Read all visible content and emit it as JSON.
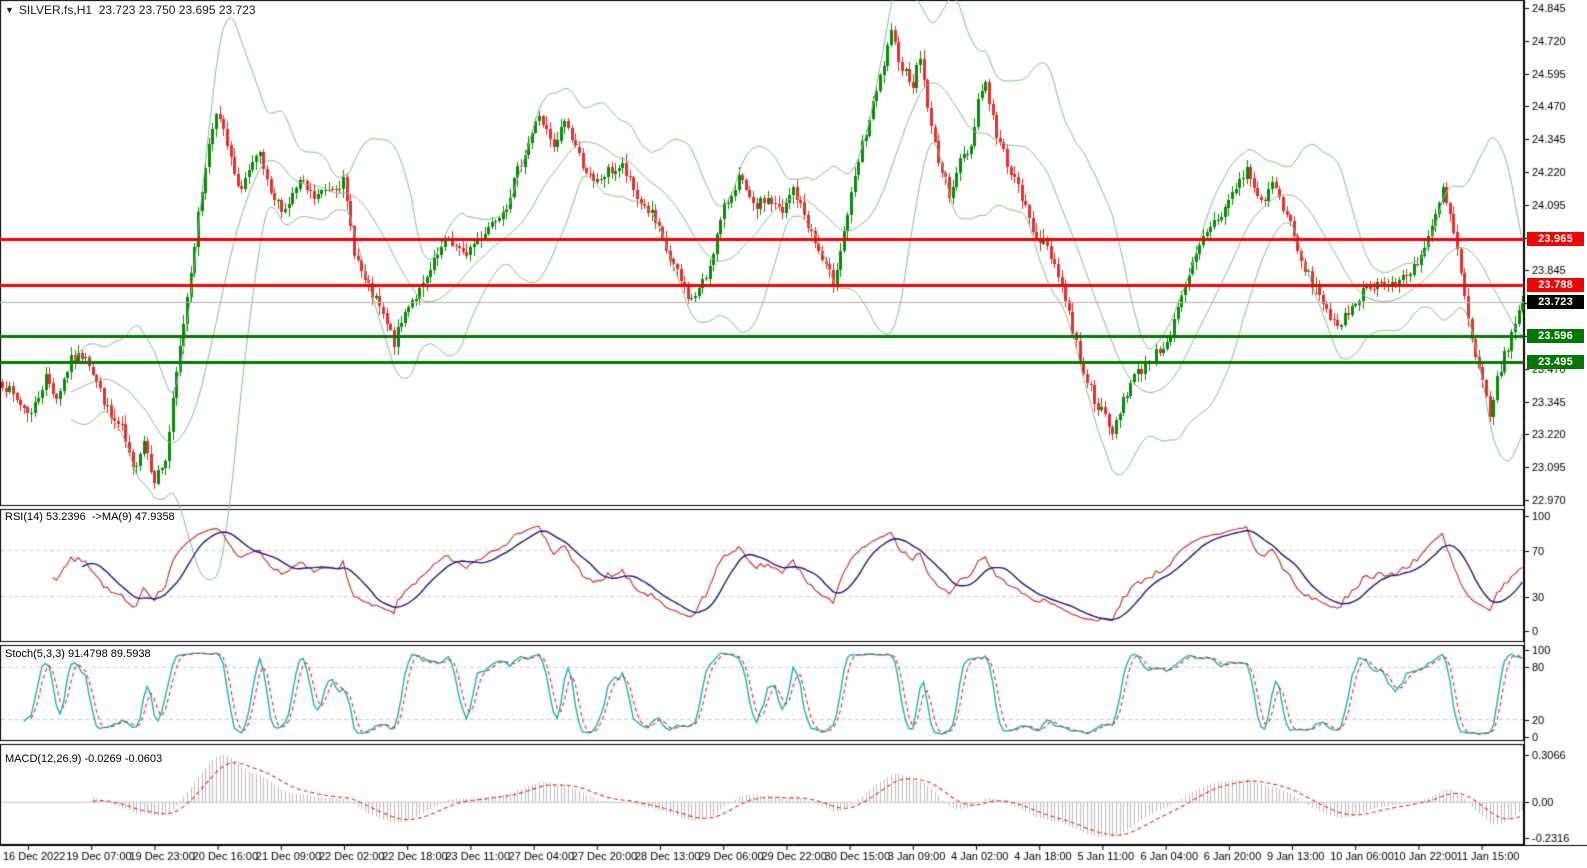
{
  "header": {
    "title_line": "SILVER.fs,H1  23.723 23.750 23.695 23.723",
    "symbol": "SILVER.fs",
    "timeframe": "H1",
    "ohlc_quote": "23.723 23.750 23.695 23.723"
  },
  "price_tags": {
    "resistance_1": "23.965",
    "resistance_2": "23.788",
    "current": "23.723",
    "support_1": "23.596",
    "support_2": "23.495"
  },
  "colors": {
    "up_candle": "#0a8a0a",
    "down_candle": "#e03030",
    "bollinger": "#8fbc8f",
    "resistance_line": "#f40000",
    "support_line": "#007800",
    "current_price_line": "#b4b4b4",
    "rsi": "#ce2b2b",
    "rsi_ma": "#1a1a8c",
    "stoch_k": "#20b2aa",
    "stoch_d": "#e03030",
    "macd_hist": "#bdbdbd",
    "macd_signal": "#e03030",
    "grid_dash": "#cccccc",
    "axis_text": "#000000",
    "panel_border": "#000000"
  },
  "chart_data": [
    {
      "type": "candlestick",
      "title": "SILVER.fs,H1",
      "last_bar": {
        "open": 23.723,
        "high": 23.75,
        "low": 23.695,
        "close": 23.723
      },
      "ylim": [
        22.97,
        24.845
      ],
      "y_ticks": [
        22.97,
        23.095,
        23.22,
        23.345,
        23.47,
        23.595,
        23.72,
        23.845,
        23.97,
        24.095,
        24.22,
        24.345,
        24.47,
        24.595,
        24.72,
        24.845
      ],
      "x_labels": [
        "16 Dec 2022",
        "19 Dec 07:00",
        "19 Dec 23:00",
        "20 Dec 16:00",
        "21 Dec 09:00",
        "22 Dec 02:00",
        "22 Dec 18:00",
        "23 Dec 11:00",
        "27 Dec 04:00",
        "27 Dec 20:00",
        "28 Dec 13:00",
        "29 Dec 06:00",
        "29 Dec 22:00",
        "30 Dec 15:00",
        "3 Jan 09:00",
        "4 Jan 02:00",
        "4 Jan 18:00",
        "5 Jan 11:00",
        "6 Jan 04:00",
        "6 Jan 20:00",
        "9 Jan 13:00",
        "10 Jan 06:00",
        "10 Jan 22:00",
        "11 Jan 15:00"
      ],
      "n_bars": 420,
      "price_swings": [
        [
          0,
          23.42
        ],
        [
          4,
          23.35
        ],
        [
          8,
          23.3
        ],
        [
          12,
          23.44
        ],
        [
          15,
          23.36
        ],
        [
          19,
          23.5
        ],
        [
          23,
          23.53
        ],
        [
          26,
          23.42
        ],
        [
          30,
          23.28
        ],
        [
          33,
          23.24
        ],
        [
          36,
          23.08
        ],
        [
          39,
          23.2
        ],
        [
          42,
          23.05
        ],
        [
          45,
          23.12
        ],
        [
          48,
          23.45
        ],
        [
          52,
          23.85
        ],
        [
          56,
          24.25
        ],
        [
          59,
          24.46
        ],
        [
          62,
          24.32
        ],
        [
          65,
          24.15
        ],
        [
          68,
          24.22
        ],
        [
          71,
          24.28
        ],
        [
          74,
          24.12
        ],
        [
          78,
          24.08
        ],
        [
          82,
          24.18
        ],
        [
          86,
          24.12
        ],
        [
          90,
          24.16
        ],
        [
          94,
          24.18
        ],
        [
          97,
          23.92
        ],
        [
          100,
          23.8
        ],
        [
          104,
          23.7
        ],
        [
          108,
          23.57
        ],
        [
          112,
          23.72
        ],
        [
          116,
          23.78
        ],
        [
          120,
          23.9
        ],
        [
          123,
          23.97
        ],
        [
          127,
          23.9
        ],
        [
          131,
          23.96
        ],
        [
          135,
          24.03
        ],
        [
          139,
          24.1
        ],
        [
          144,
          24.3
        ],
        [
          148,
          24.44
        ],
        [
          152,
          24.3
        ],
        [
          155,
          24.42
        ],
        [
          159,
          24.28
        ],
        [
          163,
          24.17
        ],
        [
          167,
          24.22
        ],
        [
          171,
          24.24
        ],
        [
          175,
          24.12
        ],
        [
          179,
          24.06
        ],
        [
          183,
          23.92
        ],
        [
          187,
          23.8
        ],
        [
          190,
          23.73
        ],
        [
          194,
          23.82
        ],
        [
          199,
          24.08
        ],
        [
          203,
          24.2
        ],
        [
          207,
          24.08
        ],
        [
          211,
          24.12
        ],
        [
          215,
          24.06
        ],
        [
          218,
          24.16
        ],
        [
          222,
          24.02
        ],
        [
          226,
          23.88
        ],
        [
          229,
          23.8
        ],
        [
          233,
          24.06
        ],
        [
          237,
          24.32
        ],
        [
          241,
          24.52
        ],
        [
          245,
          24.74
        ],
        [
          248,
          24.62
        ],
        [
          251,
          24.56
        ],
        [
          253,
          24.66
        ],
        [
          256,
          24.38
        ],
        [
          259,
          24.22
        ],
        [
          261,
          24.14
        ],
        [
          264,
          24.26
        ],
        [
          267,
          24.32
        ],
        [
          269,
          24.5
        ],
        [
          271,
          24.56
        ],
        [
          274,
          24.36
        ],
        [
          277,
          24.26
        ],
        [
          281,
          24.12
        ],
        [
          284,
          24.0
        ],
        [
          288,
          23.93
        ],
        [
          291,
          23.84
        ],
        [
          295,
          23.62
        ],
        [
          298,
          23.46
        ],
        [
          301,
          23.36
        ],
        [
          304,
          23.28
        ],
        [
          306,
          23.22
        ],
        [
          309,
          23.36
        ],
        [
          312,
          23.44
        ],
        [
          316,
          23.5
        ],
        [
          319,
          23.54
        ],
        [
          322,
          23.6
        ],
        [
          326,
          23.78
        ],
        [
          329,
          23.9
        ],
        [
          332,
          24.0
        ],
        [
          336,
          24.06
        ],
        [
          340,
          24.16
        ],
        [
          343,
          24.23
        ],
        [
          345,
          24.16
        ],
        [
          347,
          24.1
        ],
        [
          350,
          24.18
        ],
        [
          354,
          24.06
        ],
        [
          358,
          23.87
        ],
        [
          361,
          23.8
        ],
        [
          364,
          23.73
        ],
        [
          368,
          23.61
        ],
        [
          371,
          23.69
        ],
        [
          375,
          23.77
        ],
        [
          379,
          23.8
        ],
        [
          383,
          23.78
        ],
        [
          387,
          23.83
        ],
        [
          391,
          23.9
        ],
        [
          394,
          24.0
        ],
        [
          397,
          24.15
        ],
        [
          399,
          24.05
        ],
        [
          401,
          23.92
        ],
        [
          404,
          23.65
        ],
        [
          406,
          23.5
        ],
        [
          408,
          23.42
        ],
        [
          410,
          23.3
        ],
        [
          412,
          23.42
        ],
        [
          414,
          23.52
        ],
        [
          417,
          23.64
        ],
        [
          419,
          23.72
        ]
      ],
      "bollinger": {
        "period": 20,
        "deviation": 2
      },
      "hlines": [
        {
          "price": 23.965,
          "label": "23.965",
          "kind": "resistance"
        },
        {
          "price": 23.788,
          "label": "23.788",
          "kind": "resistance"
        },
        {
          "price": 23.596,
          "label": "23.596",
          "kind": "support"
        },
        {
          "price": 23.495,
          "label": "23.495",
          "kind": "support"
        }
      ],
      "current_price": {
        "value": 23.723,
        "label": "23.723"
      }
    },
    {
      "type": "line",
      "name": "RSI",
      "label": "RSI(14) 53.2396  ->MA(9) 47.9358",
      "period": 14,
      "ma_period": 9,
      "displayed_values": [
        53.2396,
        47.9358
      ],
      "ylim": [
        0,
        100
      ],
      "y_ticks": [
        100,
        70,
        30,
        0
      ],
      "gridlines": [
        70,
        30
      ]
    },
    {
      "type": "line",
      "name": "Stochastic",
      "label": "Stoch(5,3,3) 91.4798 89.5938",
      "params": [
        5,
        3,
        3
      ],
      "displayed_values": [
        91.4798,
        89.5938
      ],
      "ylim": [
        0,
        100
      ],
      "y_ticks": [
        100,
        80,
        20,
        0
      ],
      "gridlines": [
        80,
        20
      ]
    },
    {
      "type": "histogram_line",
      "name": "MACD",
      "label": "MACD(12,26,9) -0.0269 -0.0603",
      "params": [
        12,
        26,
        9
      ],
      "displayed_values": [
        -0.0269,
        -0.0603
      ],
      "y_ticks": [
        {
          "v": 0.3066,
          "label": "0.3066"
        },
        {
          "v": 0,
          "label": "0.00"
        },
        {
          "v": -0.2316,
          "label": "-0.2316"
        }
      ],
      "ylim": [
        -0.2316,
        0.3066
      ]
    }
  ]
}
